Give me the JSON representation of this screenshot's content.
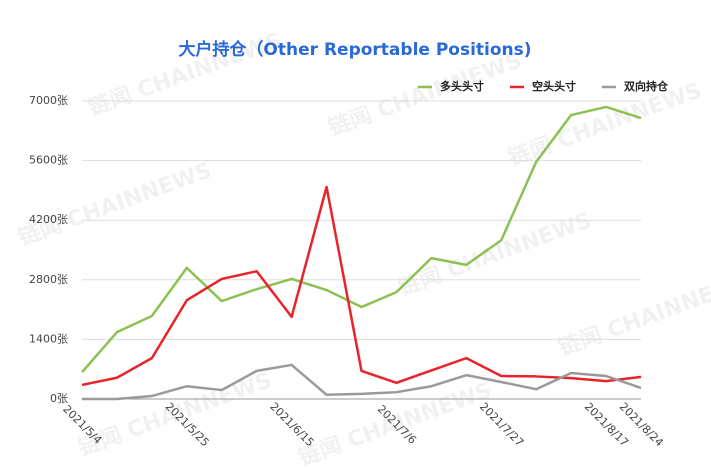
{
  "chart_data": {
    "type": "line",
    "title": "大户持仓（Other Reportable Positions)",
    "watermark": "链闻 CHAINNEWS",
    "categories": [
      "2021/5/4",
      null,
      null,
      "2021/5/25",
      null,
      null,
      "2021/6/15",
      null,
      null,
      "2021/7/6",
      null,
      null,
      "2021/7/27",
      null,
      null,
      "2021/8/17",
      "2021/8/24"
    ],
    "series": [
      {
        "name": "多头头寸",
        "color": "#8cc152",
        "values": [
          630,
          1570,
          1950,
          3080,
          2300,
          2580,
          2820,
          2560,
          2160,
          2510,
          3310,
          3150,
          3730,
          5570,
          6670,
          6860,
          6600
        ]
      },
      {
        "name": "空头头寸",
        "color": "#e8232a",
        "values": [
          330,
          500,
          960,
          2320,
          2820,
          3000,
          1930,
          4980,
          660,
          380,
          670,
          960,
          540,
          530,
          490,
          420,
          520
        ]
      },
      {
        "name": "双向持仓",
        "color": "#9a9a9a",
        "values": [
          0,
          0,
          70,
          300,
          210,
          660,
          800,
          100,
          120,
          160,
          300,
          560,
          400,
          230,
          610,
          540,
          260
        ]
      }
    ],
    "ylim": [
      0,
      7000
    ],
    "yticks": [
      {
        "value": 0,
        "label": "0张"
      },
      {
        "value": 1400,
        "label": "1400张"
      },
      {
        "value": 2800,
        "label": "2800张"
      },
      {
        "value": 4200,
        "label": "4200张"
      },
      {
        "value": 5600,
        "label": "5600张"
      },
      {
        "value": 7000,
        "label": "7000张"
      }
    ],
    "grid": true,
    "legend": "top-right"
  }
}
